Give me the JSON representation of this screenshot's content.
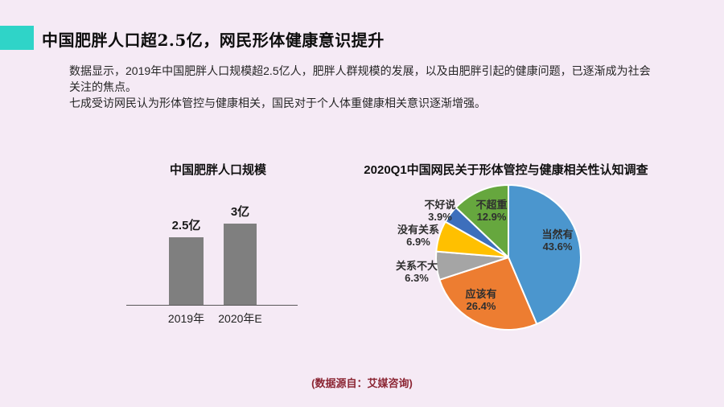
{
  "page": {
    "background": "#F5EAF5",
    "accent_color": "#2FD4C8",
    "title": "中国肥胖人口超2.5亿，网民形体健康意识提升",
    "body_lines": [
      "数据显示，2019年中国肥胖人口规模超2.5亿人，肥胖人群规模的发展，以及由肥胖引起的健康问题，已逐渐成为社会",
      "关注的焦点。",
      "七成受访网民认为形体管控与健康相关，国民对于个人体重健康相关意识逐渐增强。"
    ],
    "source_note": "(数据源自：艾媒咨询)"
  },
  "chart_data": [
    {
      "type": "bar",
      "title": "中国肥胖人口规模",
      "categories": [
        "2019年",
        "2020年E"
      ],
      "values": [
        2.5,
        3
      ],
      "unit": "亿",
      "value_labels": [
        "2.5亿",
        "3亿"
      ],
      "bar_color": "#7F7F7F",
      "ylim": [
        0,
        3
      ],
      "grid": false,
      "legend": "none"
    },
    {
      "type": "pie",
      "title": "2020Q1中国网民关于形体管控与健康相关性认知调查",
      "start_angle_deg": 0,
      "direction": "clockwise",
      "slices": [
        {
          "name": "当然有",
          "value": 43.6,
          "pct_label": "43.6%",
          "color": "#4B96CE"
        },
        {
          "name": "应该有",
          "value": 26.4,
          "pct_label": "26.4%",
          "color": "#ED7D31"
        },
        {
          "name": "关系不大",
          "value": 6.3,
          "pct_label": "6.3%",
          "color": "#A5A5A5"
        },
        {
          "name": "没有关系",
          "value": 6.9,
          "pct_label": "6.9%",
          "color": "#FFC000"
        },
        {
          "name": "不好说",
          "value": 3.9,
          "pct_label": "3.9%",
          "color": "#3D6FBC"
        },
        {
          "name": "不超重",
          "value": 12.9,
          "pct_label": "12.9%",
          "color": "#66A73E"
        }
      ]
    }
  ]
}
